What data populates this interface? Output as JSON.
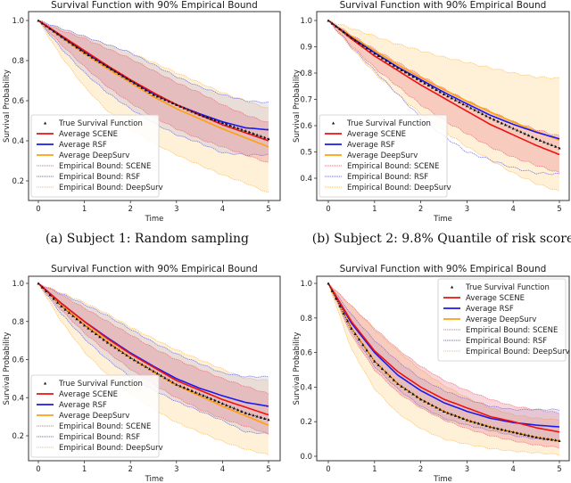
{
  "chart_data": [
    {
      "id": "a",
      "type": "line",
      "title": "Survival Function with 90% Empirical Bound",
      "caption": "(a) Subject 1: Random sampling",
      "xlabel": "Time",
      "ylabel": "Survival Probability",
      "xlim": [
        -0.2,
        5.2
      ],
      "ylim": [
        0.1,
        1.04
      ],
      "xticks": [
        0,
        1,
        2,
        3,
        4,
        5
      ],
      "yticks": [
        0.2,
        0.4,
        0.6,
        0.8,
        1.0
      ],
      "ytick_labels": [
        "0.2",
        "0.4",
        "0.6",
        "0.8",
        "1.0"
      ],
      "legend_position": "lower-left",
      "x": [
        0,
        0.5,
        1,
        1.5,
        2,
        2.5,
        3,
        3.5,
        4,
        4.5,
        5
      ],
      "series": [
        {
          "name": "True Survival Function",
          "values": [
            1.0,
            0.92,
            0.84,
            0.77,
            0.7,
            0.63,
            0.58,
            0.53,
            0.49,
            0.45,
            0.41
          ]
        },
        {
          "name": "Average SCENE",
          "values": [
            1.0,
            0.925,
            0.85,
            0.775,
            0.705,
            0.64,
            0.58,
            0.53,
            0.48,
            0.44,
            0.4
          ]
        },
        {
          "name": "Average RSF",
          "values": [
            1.0,
            0.92,
            0.845,
            0.77,
            0.7,
            0.635,
            0.58,
            0.535,
            0.495,
            0.465,
            0.455
          ]
        },
        {
          "name": "Average DeepSurv",
          "values": [
            1.0,
            0.915,
            0.835,
            0.76,
            0.69,
            0.62,
            0.56,
            0.51,
            0.46,
            0.415,
            0.37
          ]
        }
      ],
      "bounds": [
        {
          "name": "Empirical Bound: SCENE",
          "lower": [
            1.0,
            0.88,
            0.77,
            0.67,
            0.59,
            0.52,
            0.46,
            0.41,
            0.37,
            0.33,
            0.29
          ],
          "upper": [
            1.0,
            0.95,
            0.91,
            0.86,
            0.81,
            0.75,
            0.69,
            0.64,
            0.58,
            0.53,
            0.49
          ]
        },
        {
          "name": "Empirical Bound: RSF",
          "lower": [
            1.0,
            0.86,
            0.74,
            0.64,
            0.56,
            0.49,
            0.43,
            0.39,
            0.34,
            0.33,
            0.33
          ],
          "upper": [
            1.0,
            0.96,
            0.92,
            0.88,
            0.84,
            0.78,
            0.72,
            0.67,
            0.63,
            0.6,
            0.59
          ]
        },
        {
          "name": "Empirical Bound: DeepSurv",
          "lower": [
            1.0,
            0.82,
            0.67,
            0.55,
            0.46,
            0.39,
            0.33,
            0.28,
            0.23,
            0.19,
            0.14
          ],
          "upper": [
            1.0,
            0.96,
            0.92,
            0.88,
            0.84,
            0.79,
            0.74,
            0.69,
            0.64,
            0.6,
            0.56
          ]
        }
      ]
    },
    {
      "id": "b",
      "type": "line",
      "title": "Survival Function with 90% Empirical Bound",
      "caption": "(b) Subject 2: 9.8% Quantile of risk score",
      "xlabel": "Time",
      "ylabel": "Survival Probability",
      "xlim": [
        -0.2,
        5.2
      ],
      "ylim": [
        0.33,
        1.03
      ],
      "xticks": [
        0,
        1,
        2,
        3,
        4,
        5
      ],
      "yticks": [
        0.4,
        0.5,
        0.6,
        0.7,
        0.8,
        0.9,
        1.0
      ],
      "ytick_labels": [
        "0.4",
        "0.5",
        "0.6",
        "0.7",
        "0.8",
        "0.9",
        "1.0"
      ],
      "legend_position": "lower-left",
      "x": [
        0,
        0.5,
        1,
        1.5,
        2,
        2.5,
        3,
        3.5,
        4,
        4.5,
        5
      ],
      "series": [
        {
          "name": "True Survival Function",
          "values": [
            1.0,
            0.935,
            0.875,
            0.82,
            0.77,
            0.72,
            0.675,
            0.63,
            0.59,
            0.55,
            0.515
          ]
        },
        {
          "name": "Average SCENE",
          "values": [
            1.0,
            0.93,
            0.865,
            0.81,
            0.755,
            0.705,
            0.655,
            0.605,
            0.565,
            0.525,
            0.49
          ]
        },
        {
          "name": "Average RSF",
          "values": [
            1.0,
            0.935,
            0.878,
            0.823,
            0.775,
            0.727,
            0.683,
            0.64,
            0.605,
            0.575,
            0.55
          ]
        },
        {
          "name": "Average DeepSurv",
          "values": [
            1.0,
            0.94,
            0.885,
            0.832,
            0.783,
            0.737,
            0.693,
            0.652,
            0.614,
            0.578,
            0.545
          ]
        }
      ],
      "bounds": [
        {
          "name": "Empirical Bound: SCENE",
          "lower": [
            1.0,
            0.905,
            0.82,
            0.75,
            0.68,
            0.62,
            0.57,
            0.52,
            0.48,
            0.45,
            0.42
          ],
          "upper": [
            1.0,
            0.945,
            0.89,
            0.84,
            0.79,
            0.74,
            0.695,
            0.655,
            0.615,
            0.585,
            0.56
          ]
        },
        {
          "name": "Empirical Bound: RSF",
          "lower": [
            1.0,
            0.9,
            0.81,
            0.72,
            0.63,
            0.56,
            0.5,
            0.47,
            0.44,
            0.42,
            0.415
          ]
        },
        {
          "name": "Empirical Bound: DeepSurv",
          "lower": [
            1.0,
            0.895,
            0.8,
            0.72,
            0.645,
            0.58,
            0.52,
            0.47,
            0.42,
            0.38,
            0.35
          ],
          "upper": [
            1.0,
            0.97,
            0.94,
            0.91,
            0.885,
            0.86,
            0.84,
            0.82,
            0.8,
            0.785,
            0.78
          ]
        }
      ]
    },
    {
      "id": "c",
      "type": "line",
      "title": "Survival Function with 90% Empirical Bound",
      "caption": "",
      "xlabel": "Time",
      "ylabel": "Survival Probability",
      "xlim": [
        -0.2,
        5.2
      ],
      "ylim": [
        0.08,
        1.04
      ],
      "xticks": [
        0,
        1,
        2,
        3,
        4,
        5
      ],
      "yticks": [
        0.2,
        0.4,
        0.6,
        0.8,
        1.0
      ],
      "ytick_labels": [
        "0.2",
        "0.4",
        "0.6",
        "0.8",
        "1.0"
      ],
      "legend_position": "lower-left",
      "x": [
        0,
        0.5,
        1,
        1.5,
        2,
        2.5,
        3,
        3.5,
        4,
        4.5,
        5
      ],
      "series": [
        {
          "name": "True Survival Function",
          "values": [
            1.0,
            0.88,
            0.78,
            0.69,
            0.61,
            0.54,
            0.47,
            0.42,
            0.37,
            0.32,
            0.285
          ]
        },
        {
          "name": "Average SCENE",
          "values": [
            1.0,
            0.895,
            0.8,
            0.71,
            0.63,
            0.56,
            0.49,
            0.44,
            0.39,
            0.35,
            0.31
          ]
        },
        {
          "name": "Average RSF",
          "values": [
            1.0,
            0.895,
            0.8,
            0.715,
            0.635,
            0.565,
            0.5,
            0.45,
            0.41,
            0.375,
            0.355
          ]
        },
        {
          "name": "Average DeepSurv",
          "values": [
            1.0,
            0.885,
            0.785,
            0.695,
            0.61,
            0.535,
            0.465,
            0.41,
            0.355,
            0.305,
            0.255
          ]
        }
      ],
      "bounds": [
        {
          "name": "Empirical Bound: SCENE",
          "lower": [
            1.0,
            0.86,
            0.74,
            0.64,
            0.55,
            0.47,
            0.4,
            0.34,
            0.29,
            0.25,
            0.21
          ],
          "upper": [
            1.0,
            0.94,
            0.87,
            0.8,
            0.73,
            0.66,
            0.6,
            0.55,
            0.5,
            0.46,
            0.42
          ]
        },
        {
          "name": "Empirical Bound: RSF",
          "lower": [
            1.0,
            0.84,
            0.71,
            0.6,
            0.51,
            0.44,
            0.38,
            0.33,
            0.28,
            0.22,
            0.21
          ],
          "upper": [
            1.0,
            0.945,
            0.89,
            0.83,
            0.76,
            0.69,
            0.63,
            0.58,
            0.53,
            0.51,
            0.51
          ]
        },
        {
          "name": "Empirical Bound: DeepSurv",
          "lower": [
            1.0,
            0.8,
            0.64,
            0.52,
            0.42,
            0.34,
            0.27,
            0.22,
            0.17,
            0.13,
            0.1
          ],
          "upper": [
            1.0,
            0.95,
            0.9,
            0.84,
            0.77,
            0.71,
            0.65,
            0.6,
            0.55,
            0.5,
            0.49
          ]
        }
      ]
    },
    {
      "id": "d",
      "type": "line",
      "title": "Survival Function with 90% Empirical Bound",
      "caption": "",
      "xlabel": "Time",
      "ylabel": "Survival Probability",
      "xlim": [
        -0.2,
        5.2
      ],
      "ylim": [
        -0.05,
        1.05
      ],
      "xticks": [
        0,
        1,
        2,
        3,
        4,
        5
      ],
      "yticks": [
        0.0,
        0.2,
        0.4,
        0.6,
        0.8,
        1.0
      ],
      "ytick_labels": [
        "0.0",
        "0.2",
        "0.4",
        "0.6",
        "0.8",
        "1.0"
      ],
      "legend_position": "upper-right",
      "x": [
        0,
        0.5,
        1,
        1.5,
        2,
        2.5,
        3,
        3.5,
        4,
        4.5,
        5
      ],
      "series": [
        {
          "name": "True Survival Function",
          "values": [
            1.0,
            0.74,
            0.55,
            0.42,
            0.33,
            0.26,
            0.21,
            0.17,
            0.14,
            0.11,
            0.09
          ]
        },
        {
          "name": "Average SCENE",
          "values": [
            1.0,
            0.78,
            0.61,
            0.49,
            0.4,
            0.33,
            0.28,
            0.23,
            0.2,
            0.165,
            0.14
          ]
        },
        {
          "name": "Average RSF",
          "values": [
            1.0,
            0.77,
            0.6,
            0.47,
            0.38,
            0.31,
            0.26,
            0.22,
            0.195,
            0.18,
            0.17
          ]
        },
        {
          "name": "Average DeepSurv",
          "values": [
            1.0,
            0.74,
            0.55,
            0.42,
            0.33,
            0.26,
            0.21,
            0.17,
            0.14,
            0.11,
            0.09
          ]
        }
      ],
      "bounds": [
        {
          "name": "Empirical Bound: SCENE",
          "lower": [
            1.0,
            0.7,
            0.5,
            0.37,
            0.28,
            0.21,
            0.16,
            0.12,
            0.09,
            0.065,
            0.05
          ],
          "upper": [
            1.0,
            0.87,
            0.74,
            0.62,
            0.52,
            0.44,
            0.38,
            0.33,
            0.29,
            0.27,
            0.25
          ]
        },
        {
          "name": "Empirical Bound: RSF",
          "lower": [
            1.0,
            0.72,
            0.52,
            0.39,
            0.29,
            0.22,
            0.18,
            0.15,
            0.12,
            0.1,
            0.09
          ],
          "upper": [
            1.0,
            0.82,
            0.67,
            0.55,
            0.45,
            0.38,
            0.33,
            0.29,
            0.27,
            0.27,
            0.27
          ]
        },
        {
          "name": "Empirical Bound: DeepSurv",
          "lower": [
            1.0,
            0.62,
            0.39,
            0.25,
            0.16,
            0.1,
            0.07,
            0.045,
            0.03,
            0.02,
            0.01
          ],
          "upper": [
            1.0,
            0.87,
            0.73,
            0.61,
            0.5,
            0.41,
            0.34,
            0.28,
            0.24,
            0.22,
            0.21
          ]
        }
      ]
    }
  ],
  "legend": {
    "entries": [
      {
        "label": "True Survival Function",
        "kind": "marker"
      },
      {
        "label": "Average SCENE",
        "kind": "line"
      },
      {
        "label": "Average RSF",
        "kind": "line"
      },
      {
        "label": "Average DeepSurv",
        "kind": "line"
      },
      {
        "label": "Empirical Bound: SCENE",
        "kind": "dotted"
      },
      {
        "label": "Empirical Bound: RSF",
        "kind": "dotted"
      },
      {
        "label": "Empirical Bound: DeepSurv",
        "kind": "dotted"
      }
    ]
  },
  "colors": {
    "true": "#111111",
    "scene": "#ee1111",
    "rsf": "#1a1aee",
    "deepsurv": "#ffa010",
    "scene_band": "#e06070",
    "rsf_band": "#9090dd",
    "deepsurv_band": "#ffd890"
  }
}
